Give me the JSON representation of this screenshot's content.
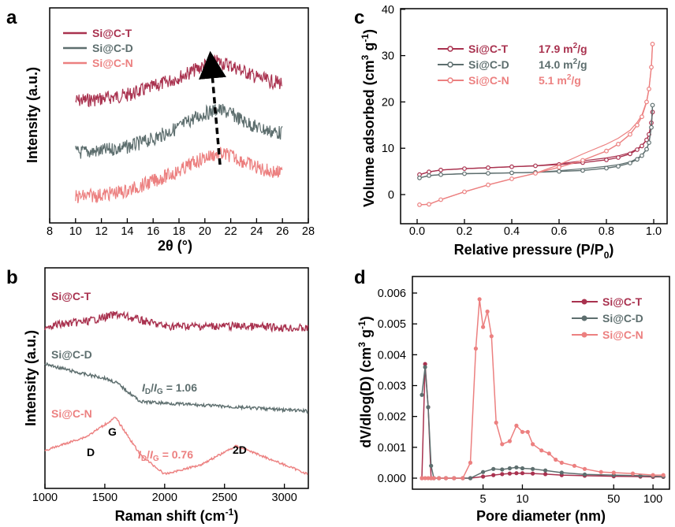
{
  "colors": {
    "T": "#a9324f",
    "D": "#5d6e6e",
    "N": "#ec8080"
  },
  "panels": {
    "a": {
      "label": "a",
      "xlabel": "2θ (°)",
      "ylabel": "Intensity (a.u.)",
      "xticks": [
        "8",
        "10",
        "12",
        "14",
        "16",
        "18",
        "20",
        "22",
        "24",
        "26",
        "28"
      ],
      "legend": [
        "Si@C-T",
        "Si@C-D",
        "Si@C-N"
      ]
    },
    "b": {
      "label": "b",
      "xlabel_main": "Raman shift (cm",
      "xlabel_sup": "-1",
      "xlabel_end": ")",
      "ylabel": "Intensity (a.u.)",
      "xticks": [
        "1000",
        "1500",
        "2000",
        "2500",
        "3000"
      ],
      "series_labels": [
        "Si@C-T",
        "Si@C-D",
        "Si@C-N"
      ],
      "ratio_D": "= 1.06",
      "ratio_N": "= 0.76",
      "ratio_I": "I",
      "ratio_sD": "D",
      "ratio_slash": "/",
      "ratio_sG": "G",
      "peak_D": "D",
      "peak_G": "G",
      "peak_2D": "2D"
    },
    "c": {
      "label": "c",
      "xlabel_main": "Relative pressure (P/P",
      "xlabel_sub": "0",
      "xlabel_end": ")",
      "ylabel_main": "Volume adsorbed (cm",
      "ylabel_sup1": "3",
      "ylabel_mid": " g",
      "ylabel_sup2": "-1",
      "ylabel_end": ")",
      "xticks": [
        "0.0",
        "0.2",
        "0.4",
        "0.6",
        "0.8",
        "1.0"
      ],
      "yticks": [
        "0",
        "10",
        "20",
        "30",
        "40"
      ],
      "legend": [
        {
          "name": "Si@C-T",
          "value": "17.9 m",
          "unit_sup": "2",
          "unit_end": "/g"
        },
        {
          "name": "Si@C-D",
          "value": "14.0 m",
          "unit_sup": "2",
          "unit_end": "/g"
        },
        {
          "name": "Si@C-N",
          "value": "5.1 m",
          "unit_sup": "2",
          "unit_end": "/g"
        }
      ]
    },
    "d": {
      "label": "d",
      "xlabel": "Pore diameter (nm)",
      "ylabel_main": "dV/dlog(D) (cm",
      "ylabel_sup1": "3",
      "ylabel_mid": " g",
      "ylabel_sup2": "-1",
      "ylabel_end": ")",
      "xticks": [
        "5",
        "10",
        "50",
        "100"
      ],
      "yticks": [
        "0.000",
        "0.001",
        "0.002",
        "0.003",
        "0.004",
        "0.005",
        "0.006"
      ],
      "legend": [
        "Si@C-T",
        "Si@C-D",
        "Si@C-N"
      ]
    }
  },
  "chart_data": [
    {
      "panel": "a",
      "type": "line",
      "xlabel": "2θ (°)",
      "ylabel": "Intensity (a.u.)",
      "xlim": [
        8,
        28
      ],
      "series": [
        {
          "name": "Si@C-T",
          "x": [
            10,
            12,
            14,
            16,
            18,
            19,
            20,
            21,
            22,
            23,
            24,
            25,
            26
          ],
          "y": [
            0.0,
            0.01,
            0.03,
            0.07,
            0.12,
            0.15,
            0.18,
            0.2,
            0.18,
            0.15,
            0.12,
            0.1,
            0.09
          ]
        },
        {
          "name": "Si@C-D",
          "x": [
            10,
            12,
            14,
            16,
            18,
            19,
            20,
            21,
            22,
            23,
            24,
            25,
            26
          ],
          "y": [
            0.0,
            0.01,
            0.03,
            0.07,
            0.13,
            0.17,
            0.2,
            0.22,
            0.2,
            0.16,
            0.13,
            0.11,
            0.1
          ]
        },
        {
          "name": "Si@C-N",
          "x": [
            10,
            12,
            14,
            16,
            18,
            19,
            20,
            21,
            22,
            23,
            24,
            25,
            26
          ],
          "y": [
            0.0,
            0.01,
            0.03,
            0.08,
            0.13,
            0.17,
            0.2,
            0.22,
            0.21,
            0.18,
            0.15,
            0.13,
            0.12
          ]
        }
      ]
    },
    {
      "panel": "b",
      "type": "line",
      "xlabel": "Raman shift (cm-1)",
      "ylabel": "Intensity (a.u.)",
      "xlim": [
        1000,
        3200
      ],
      "series": [
        {
          "name": "Si@C-T",
          "x": [
            1000,
            1350,
            1600,
            2000,
            2600,
            3200
          ],
          "y": [
            0.0,
            0.02,
            0.05,
            0.0,
            0.0,
            -0.01
          ]
        },
        {
          "name": "Si@C-D",
          "x": [
            1000,
            1300,
            1500,
            1600,
            1800,
            2500,
            3200
          ],
          "y": [
            0.2,
            0.16,
            0.14,
            0.12,
            0.04,
            0.02,
            0.0
          ]
        },
        {
          "name": "Si@C-N",
          "x": [
            1000,
            1350,
            1590,
            1800,
            2000,
            2300,
            2600,
            2800,
            3200
          ],
          "y": [
            0.1,
            0.16,
            0.24,
            0.08,
            0.0,
            0.04,
            0.12,
            0.08,
            0.0
          ]
        }
      ],
      "ratios": [
        {
          "series": "Si@C-D",
          "ID/IG": 1.06
        },
        {
          "series": "Si@C-N",
          "ID/IG": 0.76
        }
      ]
    },
    {
      "panel": "c",
      "type": "line",
      "xlabel": "Relative pressure (P/P0)",
      "ylabel": "Volume adsorbed (cm3 g-1)",
      "xlim": [
        -0.05,
        1.03
      ],
      "ylim": [
        -5,
        40
      ],
      "series": [
        {
          "name": "Si@C-T",
          "surface_area": "17.9 m2/g",
          "x": [
            0.01,
            0.05,
            0.1,
            0.2,
            0.3,
            0.4,
            0.5,
            0.6,
            0.7,
            0.8,
            0.85,
            0.9,
            0.93,
            0.95,
            0.97,
            0.98,
            0.99,
            0.995
          ],
          "y": [
            4.3,
            4.9,
            5.3,
            5.6,
            5.8,
            6.0,
            6.2,
            6.5,
            6.9,
            7.5,
            8.0,
            8.8,
            9.7,
            10.5,
            11.8,
            13.0,
            15.5,
            17.8
          ]
        },
        {
          "name": "Si@C-D",
          "surface_area": "14.0 m2/g",
          "x": [
            0.01,
            0.05,
            0.1,
            0.2,
            0.3,
            0.4,
            0.5,
            0.6,
            0.7,
            0.8,
            0.85,
            0.9,
            0.93,
            0.95,
            0.97,
            0.98,
            0.99,
            0.995
          ],
          "y": [
            3.6,
            4.1,
            4.3,
            4.5,
            4.6,
            4.7,
            4.8,
            5.0,
            5.2,
            5.7,
            6.1,
            6.8,
            7.6,
            8.4,
            9.8,
            11.2,
            14.5,
            19.3
          ]
        },
        {
          "name": "Si@C-N",
          "surface_area": "5.1 m2/g",
          "x": [
            0.01,
            0.05,
            0.1,
            0.2,
            0.3,
            0.4,
            0.5,
            0.6,
            0.7,
            0.8,
            0.85,
            0.9,
            0.93,
            0.95,
            0.97,
            0.98,
            0.99,
            0.995
          ],
          "y": [
            -2.2,
            -2.1,
            -1.1,
            0.6,
            2.1,
            3.4,
            4.6,
            5.9,
            7.4,
            9.4,
            10.9,
            13.0,
            15.0,
            16.8,
            20.0,
            22.8,
            27.5,
            32.5
          ]
        }
      ]
    },
    {
      "panel": "d",
      "type": "line",
      "xlabel": "Pore diameter (nm)",
      "ylabel": "dV/dlog(D) (cm3 g-1)",
      "xscale": "log",
      "xlim": [
        1.4,
        130
      ],
      "ylim": [
        -0.0002,
        0.0062
      ],
      "series": [
        {
          "name": "Si@C-T",
          "x": [
            1.7,
            1.8,
            1.9,
            2.0,
            2.1,
            2.3,
            2.6,
            3.0,
            3.5,
            4.0,
            5.0,
            6.0,
            7.0,
            8.0,
            9.0,
            10,
            12,
            15,
            20,
            30,
            50,
            80,
            100,
            120
          ],
          "y": [
            0.0,
            0.0037,
            0.0023,
            0.0,
            0.0,
            0.0,
            0.0,
            0.0,
            0.0,
            0.0,
            5e-05,
            0.0001,
            0.00013,
            0.00015,
            0.00016,
            0.00016,
            0.00015,
            0.00013,
            0.0001,
            8e-05,
            6e-05,
            5e-05,
            4e-05,
            4e-05
          ]
        },
        {
          "name": "Si@C-D",
          "x": [
            1.7,
            1.8,
            1.9,
            2.0,
            2.1,
            2.3,
            2.6,
            3.0,
            3.5,
            4.0,
            5.0,
            6.0,
            7.0,
            8.0,
            9.0,
            10,
            12,
            15,
            20,
            30,
            50,
            80,
            100,
            120
          ],
          "y": [
            0.0027,
            0.0036,
            0.0023,
            0.0004,
            0.0,
            0.0,
            0.0,
            0.0,
            0.0,
            0.0,
            0.0002,
            0.0003,
            0.00028,
            0.00032,
            0.00035,
            0.00032,
            0.0003,
            0.00025,
            0.00018,
            0.00012,
            0.0001,
            8e-05,
            6e-05,
            5e-05
          ]
        },
        {
          "name": "Si@C-N",
          "x": [
            1.7,
            1.8,
            1.9,
            2.0,
            2.1,
            2.3,
            2.6,
            3.0,
            3.5,
            4.0,
            4.4,
            4.7,
            5.0,
            5.4,
            5.8,
            6.3,
            7,
            8,
            9,
            10,
            11,
            12,
            14,
            16,
            18,
            20,
            25,
            30,
            40,
            50,
            70,
            100,
            120
          ],
          "y": [
            0.0,
            0.0,
            0.0,
            0.0,
            0.0,
            0.0,
            0.0,
            0.0,
            0.0,
            0.0005,
            0.0042,
            0.0058,
            0.0049,
            0.0054,
            0.0046,
            0.0018,
            0.0011,
            0.0012,
            0.0017,
            0.0015,
            0.0015,
            0.0011,
            0.0009,
            0.0008,
            0.0006,
            0.0005,
            0.0004,
            0.0003,
            0.0002,
            0.00018,
            0.00015,
            0.0001,
            0.0001
          ]
        }
      ]
    }
  ]
}
